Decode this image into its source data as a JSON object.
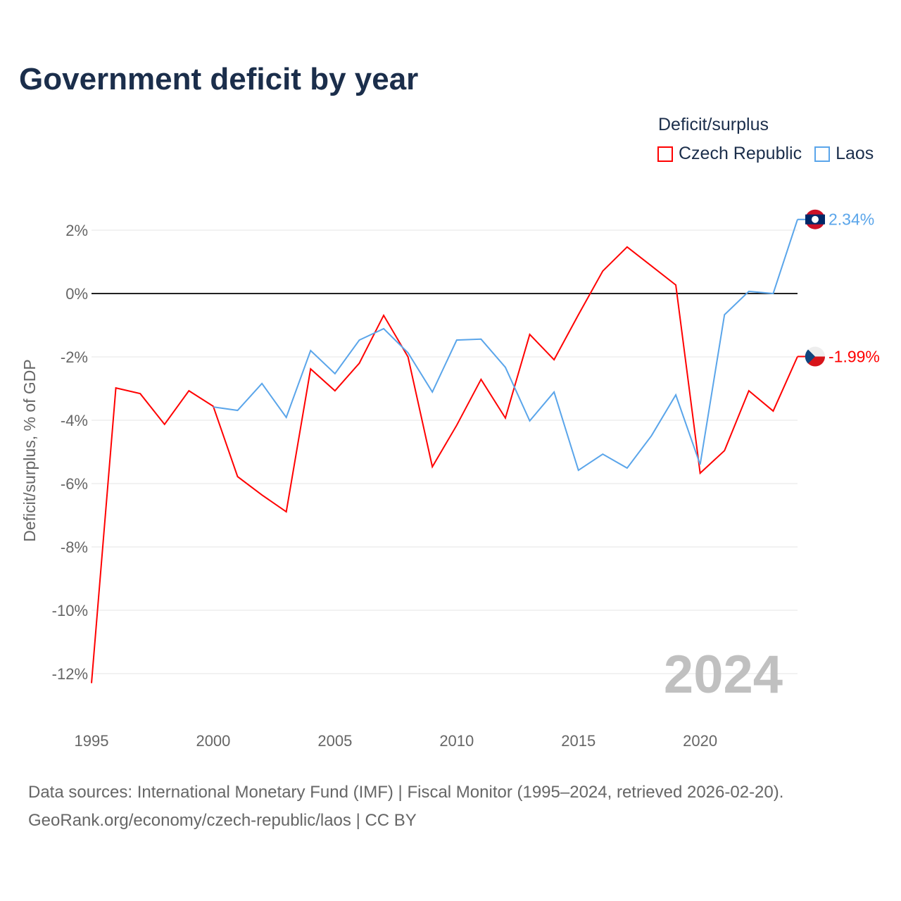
{
  "title": "Government deficit by year",
  "legend": {
    "title": "Deficit/surplus",
    "items": [
      {
        "label": "Czech Republic",
        "color": "#ff0000"
      },
      {
        "label": "Laos",
        "color": "#5aa5ea"
      }
    ]
  },
  "year_watermark": "2024",
  "source_line1": "Data sources: International Monetary Fund (IMF) | Fiscal Monitor (1995–2024, retrieved 2026-02-20).",
  "source_line2": "GeoRank.org/economy/czech-republic/laos | CC BY",
  "chart_data": {
    "type": "line",
    "title": "Government deficit by year",
    "xlabel": "",
    "ylabel": "Deficit/surplus, % of GDP",
    "xlim": [
      1995,
      2024
    ],
    "ylim": [
      -12,
      2
    ],
    "xticks": [
      1995,
      2000,
      2005,
      2010,
      2015,
      2020
    ],
    "xtick_labels": [
      "1995",
      "2000",
      "2005",
      "2010",
      "2015",
      "2020"
    ],
    "yticks": [
      2,
      0,
      -2,
      -4,
      -6,
      -8,
      -10,
      -12
    ],
    "ytick_labels": [
      "2%",
      "0%",
      "-2%",
      "-4%",
      "-6%",
      "-8%",
      "-10%",
      "-12%"
    ],
    "grid": true,
    "legend_position": "top-right",
    "series": [
      {
        "name": "Czech Republic",
        "color": "#ff0000",
        "end_label": "-1.99%",
        "x": [
          1995,
          1996,
          1997,
          1998,
          1999,
          2000,
          2001,
          2002,
          2003,
          2004,
          2005,
          2006,
          2007,
          2008,
          2009,
          2010,
          2011,
          2012,
          2013,
          2014,
          2015,
          2016,
          2017,
          2018,
          2019,
          2020,
          2021,
          2022,
          2023,
          2024
        ],
        "values": [
          -12.3,
          -2.98,
          -3.16,
          -4.13,
          -3.07,
          -3.56,
          -5.78,
          -6.36,
          -6.89,
          -2.38,
          -3.07,
          -2.2,
          -0.69,
          -2.0,
          -5.47,
          -4.16,
          -2.71,
          -3.93,
          -1.29,
          -2.09,
          -0.67,
          0.71,
          1.47,
          0.87,
          0.27,
          -5.67,
          -4.96,
          -3.07,
          -3.71,
          -1.99
        ]
      },
      {
        "name": "Laos",
        "color": "#5aa5ea",
        "end_label": "2.34%",
        "x": [
          2000,
          2001,
          2002,
          2003,
          2004,
          2005,
          2006,
          2007,
          2008,
          2009,
          2010,
          2011,
          2012,
          2013,
          2014,
          2015,
          2016,
          2017,
          2018,
          2019,
          2020,
          2021,
          2022,
          2023,
          2024
        ],
        "values": [
          -3.58,
          -3.69,
          -2.84,
          -3.91,
          -1.8,
          -2.53,
          -1.47,
          -1.11,
          -1.87,
          -3.11,
          -1.47,
          -1.44,
          -2.33,
          -4.02,
          -3.11,
          -5.58,
          -5.07,
          -5.51,
          -4.49,
          -3.2,
          -5.4,
          -0.67,
          0.07,
          0.0,
          2.34
        ]
      }
    ]
  }
}
